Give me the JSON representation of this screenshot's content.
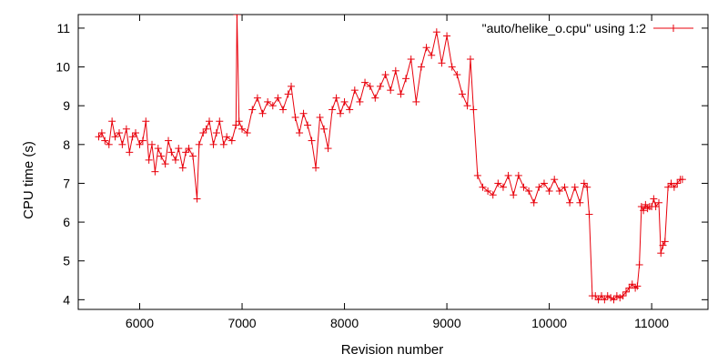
{
  "chart_data": {
    "type": "line",
    "xlabel": "Revision number",
    "ylabel": "CPU time (s)",
    "xlim": [
      5400,
      11550
    ],
    "ylim": [
      3.75,
      11.35
    ],
    "x_ticks": [
      6000,
      7000,
      8000,
      9000,
      10000,
      11000
    ],
    "y_ticks": [
      4,
      5,
      6,
      7,
      8,
      9,
      10,
      11
    ],
    "grid": false,
    "legend_position": "top-right",
    "series": [
      {
        "name": "\"auto/helike_o.cpu\" using 1:2",
        "color": "#e8000b",
        "marker": "plus",
        "x": [
          5600,
          5630,
          5660,
          5700,
          5730,
          5760,
          5800,
          5830,
          5870,
          5900,
          5930,
          5960,
          6000,
          6030,
          6060,
          6090,
          6120,
          6150,
          6180,
          6210,
          6250,
          6280,
          6310,
          6350,
          6380,
          6420,
          6450,
          6480,
          6520,
          6560,
          6580,
          6620,
          6650,
          6680,
          6720,
          6750,
          6780,
          6820,
          6850,
          6900,
          6940,
          6950,
          6970,
          7000,
          7050,
          7100,
          7150,
          7200,
          7250,
          7300,
          7350,
          7400,
          7450,
          7480,
          7520,
          7560,
          7600,
          7640,
          7680,
          7720,
          7760,
          7800,
          7840,
          7880,
          7920,
          7960,
          8000,
          8050,
          8100,
          8150,
          8200,
          8250,
          8300,
          8350,
          8400,
          8450,
          8500,
          8550,
          8600,
          8650,
          8700,
          8750,
          8800,
          8850,
          8900,
          8950,
          9000,
          9050,
          9100,
          9150,
          9200,
          9230,
          9260,
          9300,
          9350,
          9400,
          9450,
          9500,
          9550,
          9600,
          9650,
          9700,
          9750,
          9800,
          9850,
          9900,
          9950,
          10000,
          10050,
          10100,
          10150,
          10200,
          10250,
          10300,
          10340,
          10370,
          10390,
          10420,
          10450,
          10480,
          10510,
          10540,
          10570,
          10600,
          10630,
          10660,
          10690,
          10720,
          10750,
          10780,
          10810,
          10840,
          10860,
          10880,
          10900,
          10920,
          10940,
          10960,
          10980,
          11000,
          11020,
          11040,
          11070,
          11090,
          11110,
          11130,
          11160,
          11190,
          11220,
          11250,
          11280,
          11300
        ],
        "y": [
          8.2,
          8.3,
          8.1,
          8.0,
          8.6,
          8.2,
          8.3,
          8.0,
          8.4,
          7.8,
          8.2,
          8.3,
          8.0,
          8.1,
          8.6,
          7.6,
          8.0,
          7.3,
          7.9,
          7.7,
          7.5,
          8.1,
          7.8,
          7.6,
          7.9,
          7.4,
          7.8,
          7.9,
          7.7,
          6.6,
          8.0,
          8.3,
          8.4,
          8.6,
          8.0,
          8.3,
          8.6,
          8.0,
          8.2,
          8.1,
          8.5,
          11.35,
          8.6,
          8.4,
          8.3,
          8.9,
          9.2,
          8.8,
          9.1,
          9.0,
          9.2,
          8.9,
          9.3,
          9.5,
          8.7,
          8.3,
          8.8,
          8.5,
          8.1,
          7.4,
          8.7,
          8.4,
          7.9,
          8.9,
          9.2,
          8.8,
          9.1,
          8.9,
          9.4,
          9.1,
          9.6,
          9.5,
          9.2,
          9.5,
          9.8,
          9.4,
          9.9,
          9.3,
          9.7,
          10.2,
          9.1,
          10.0,
          10.5,
          10.3,
          10.9,
          10.1,
          10.8,
          10.0,
          9.8,
          9.3,
          9.0,
          10.2,
          8.9,
          7.2,
          6.9,
          6.8,
          6.7,
          7.0,
          6.9,
          7.2,
          6.7,
          7.2,
          6.9,
          6.8,
          6.5,
          6.9,
          7.0,
          6.8,
          7.1,
          6.8,
          6.9,
          6.5,
          6.9,
          6.5,
          7.0,
          6.9,
          6.2,
          4.1,
          4.1,
          4.0,
          4.1,
          4.0,
          4.1,
          4.05,
          4.0,
          4.1,
          4.05,
          4.1,
          4.2,
          4.3,
          4.4,
          4.3,
          4.35,
          4.9,
          6.4,
          6.3,
          6.45,
          6.35,
          6.4,
          6.4,
          6.6,
          6.4,
          6.5,
          5.2,
          5.4,
          5.5,
          6.9,
          7.0,
          6.9,
          7.0,
          7.1,
          7.1
        ]
      }
    ]
  }
}
